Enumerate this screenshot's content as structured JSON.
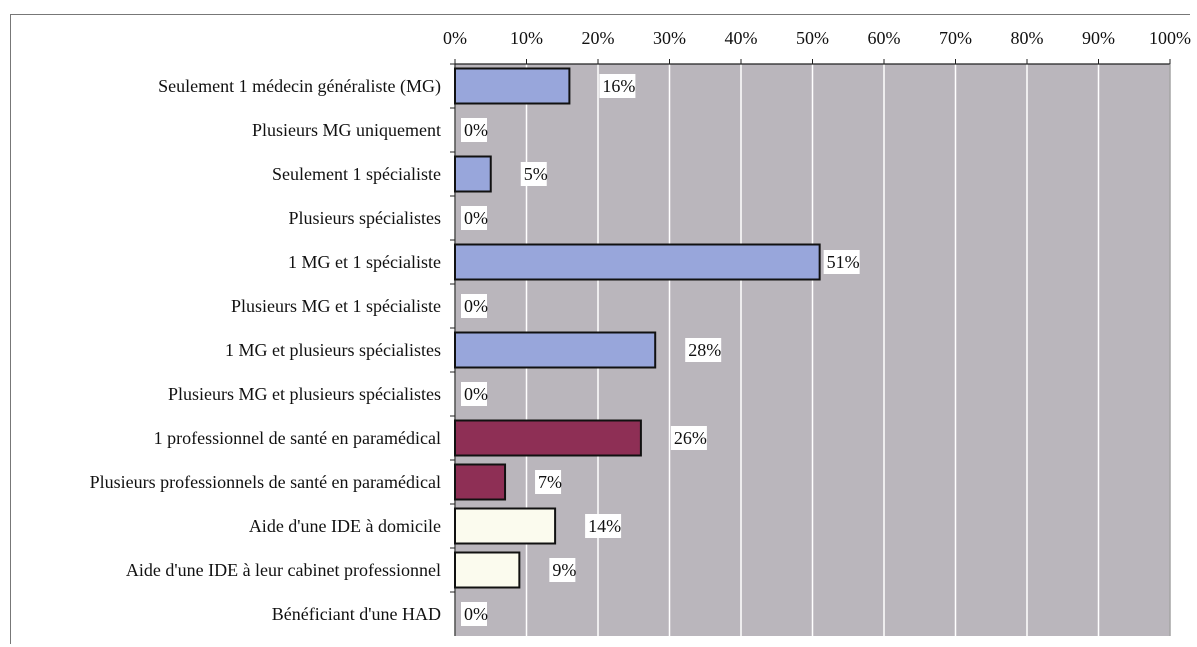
{
  "chart_data": {
    "type": "bar",
    "orientation": "horizontal",
    "categories": [
      "Seulement 1 médecin généraliste (MG)",
      "Plusieurs MG uniquement",
      "Seulement 1 spécialiste",
      "Plusieurs spécialistes",
      "1 MG et 1 spécialiste",
      "Plusieurs MG et 1 spécialiste",
      "1 MG et plusieurs spécialistes",
      "Plusieurs MG et plusieurs spécialistes",
      "1 professionnel de santé en paramédical",
      "Plusieurs professionnels de santé en paramédical",
      "Aide d'une IDE à domicile",
      "Aide d'une IDE à leur cabinet professionnel",
      "Bénéficiant d'une HAD"
    ],
    "values": [
      16,
      0,
      5,
      0,
      51,
      0,
      28,
      0,
      26,
      7,
      14,
      9,
      0
    ],
    "data_labels": [
      "16%",
      "0%",
      "5%",
      "0%",
      "51%",
      "0%",
      "28%",
      "0%",
      "26%",
      "7%",
      "14%",
      "9%",
      "0%"
    ],
    "bar_colors": [
      "#98a6db",
      "#98a6db",
      "#98a6db",
      "#98a6db",
      "#98a6db",
      "#98a6db",
      "#98a6db",
      "#98a6db",
      "#8e2f55",
      "#8e2f55",
      "#fbfbee",
      "#fbfbee",
      "#fbfbee"
    ],
    "plot_background": "#bab6bc",
    "gridline_color": "#ffffff",
    "xlim": [
      0,
      100
    ],
    "xticks": [
      0,
      10,
      20,
      30,
      40,
      50,
      60,
      70,
      80,
      90,
      100
    ],
    "xtick_labels": [
      "0%",
      "10%",
      "20%",
      "30%",
      "40%",
      "50%",
      "60%",
      "70%",
      "80%",
      "90%",
      "100%"
    ],
    "x_axis_position": "top",
    "grid": true,
    "title": "",
    "xlabel": "",
    "ylabel": ""
  }
}
